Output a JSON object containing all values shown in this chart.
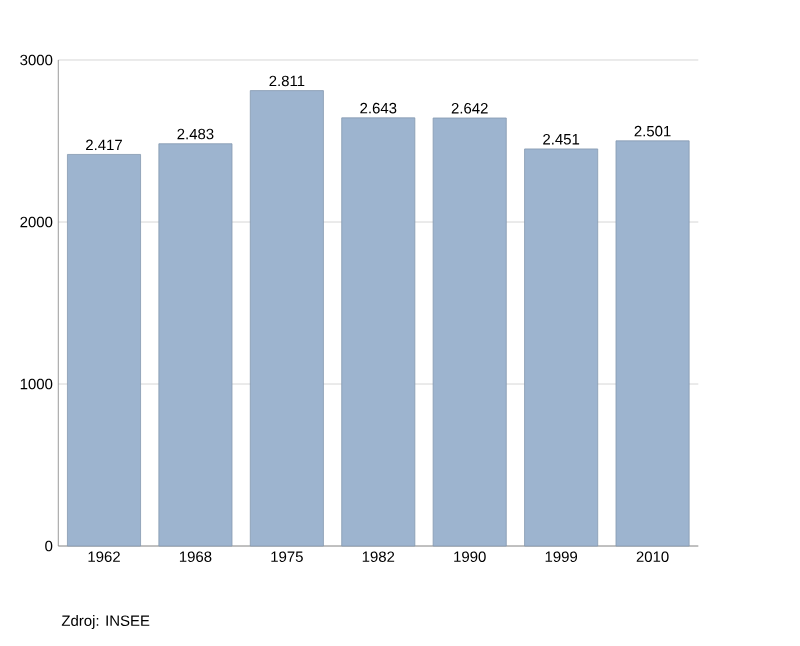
{
  "chart_data": {
    "type": "bar",
    "categories": [
      "1962",
      "1968",
      "1975",
      "1982",
      "1990",
      "1999",
      "2010"
    ],
    "values": [
      2417,
      2483,
      2811,
      2643,
      2642,
      2451,
      2501
    ],
    "value_labels": [
      "2.417",
      "2.483",
      "2.811",
      "2.643",
      "2.642",
      "2.451",
      "2.501"
    ],
    "color": "#9db4cf",
    "ylim": [
      0,
      3000
    ],
    "yticks": [
      0,
      1000,
      2000,
      3000
    ],
    "grid": "y",
    "annotations": [
      "Zdroj: INSEE"
    ]
  }
}
